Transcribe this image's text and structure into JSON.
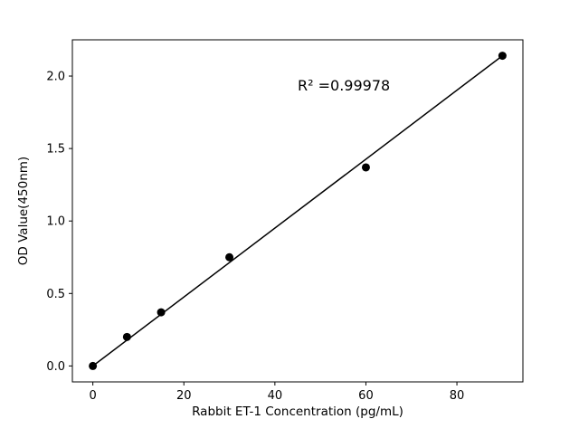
{
  "chart_data": {
    "type": "scatter",
    "title": "",
    "xlabel": "Rabbit ET-1 Concentration (pg/mL)",
    "ylabel": "OD Value(450nm)",
    "annotation": "R² =0.99978",
    "annotation_pos": {
      "x": 45,
      "y": 1.9
    },
    "x": [
      0,
      7.5,
      15,
      30,
      60,
      90
    ],
    "y": [
      0.0,
      0.2,
      0.37,
      0.75,
      1.37,
      2.14
    ],
    "fit_line": {
      "x": [
        0,
        90
      ],
      "y": [
        0.0,
        2.14
      ]
    },
    "xlim": [
      -4.5,
      94.5
    ],
    "ylim": [
      -0.11,
      2.25
    ],
    "xticks": [
      0,
      20,
      40,
      60,
      80
    ],
    "xtick_labels": [
      "0",
      "20",
      "40",
      "60",
      "80"
    ],
    "yticks": [
      0,
      0.5,
      1.0,
      1.5,
      2.0
    ],
    "ytick_labels": [
      "0.0",
      "0.5",
      "1.0",
      "1.5",
      "2.0"
    ],
    "marker_color": "#000000",
    "line_color": "#000000",
    "axis_color": "#000000",
    "background_color": "#ffffff",
    "grid": false,
    "legend": "none"
  }
}
